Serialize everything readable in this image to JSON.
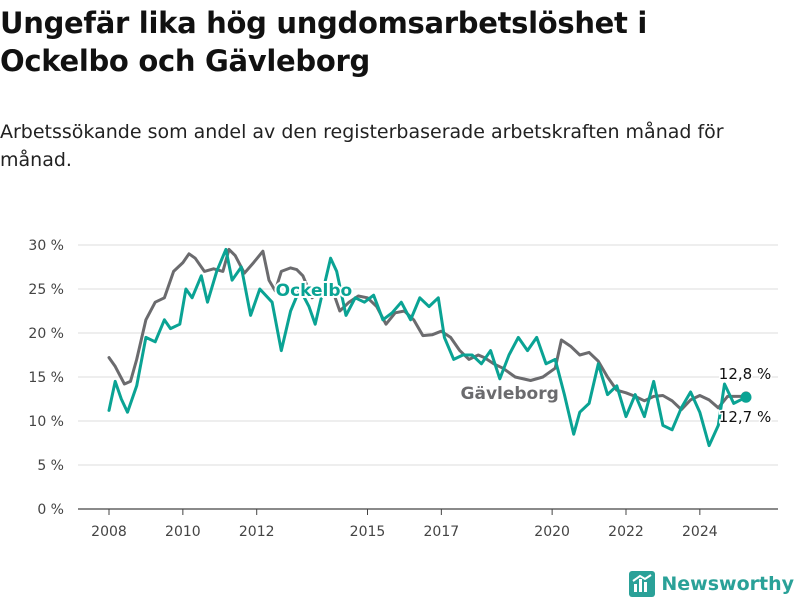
{
  "title": "Ungefär lika hög ungdomsarbetslöshet i Ockelbo och Gävleborg",
  "subtitle": "Arbetssökande som andel av den registerbaserade arbetskraften månad för månad.",
  "brand": {
    "name": "Newsworthy",
    "color": "#2aa198"
  },
  "chart_data": {
    "type": "line",
    "title": "",
    "xlabel": "",
    "ylabel": "",
    "ylim": [
      0,
      30
    ],
    "yticks": [
      "0 %",
      "5 %",
      "10 %",
      "15 %",
      "20 %",
      "25 %",
      "30 %"
    ],
    "xticks": [
      "2008",
      "2010",
      "2012",
      "2015",
      "2017",
      "2020",
      "2022",
      "2024"
    ],
    "grid": "horizontal",
    "series": [
      {
        "name": "Gävleborg",
        "color": "#6b6b6e",
        "end_label": "12,8 %",
        "points": [
          [
            "2008-01",
            17.2
          ],
          [
            "2008-03",
            16.2
          ],
          [
            "2008-06",
            14.2
          ],
          [
            "2008-08",
            14.5
          ],
          [
            "2008-10",
            17.0
          ],
          [
            "2009-01",
            21.5
          ],
          [
            "2009-04",
            23.5
          ],
          [
            "2009-07",
            24.0
          ],
          [
            "2009-10",
            27.0
          ],
          [
            "2010-01",
            28.0
          ],
          [
            "2010-03",
            29.0
          ],
          [
            "2010-05",
            28.5
          ],
          [
            "2010-08",
            27.0
          ],
          [
            "2010-11",
            27.3
          ],
          [
            "2011-02",
            27.0
          ],
          [
            "2011-04",
            29.5
          ],
          [
            "2011-06",
            28.8
          ],
          [
            "2011-09",
            26.8
          ],
          [
            "2011-12",
            28.0
          ],
          [
            "2012-03",
            29.3
          ],
          [
            "2012-05",
            26.0
          ],
          [
            "2012-07",
            24.8
          ],
          [
            "2012-09",
            27.0
          ],
          [
            "2012-12",
            27.4
          ],
          [
            "2013-02",
            27.2
          ],
          [
            "2013-04",
            26.5
          ],
          [
            "2013-07",
            24.0
          ],
          [
            "2013-10",
            25.0
          ],
          [
            "2014-01",
            25.5
          ],
          [
            "2014-04",
            22.5
          ],
          [
            "2014-07",
            23.5
          ],
          [
            "2014-10",
            24.2
          ],
          [
            "2015-01",
            24.0
          ],
          [
            "2015-04",
            23.0
          ],
          [
            "2015-07",
            21.0
          ],
          [
            "2015-10",
            22.3
          ],
          [
            "2016-01",
            22.5
          ],
          [
            "2016-04",
            21.5
          ],
          [
            "2016-07",
            19.7
          ],
          [
            "2016-10",
            19.8
          ],
          [
            "2017-01",
            20.2
          ],
          [
            "2017-04",
            19.5
          ],
          [
            "2017-07",
            18.0
          ],
          [
            "2017-10",
            17.0
          ],
          [
            "2018-01",
            17.5
          ],
          [
            "2018-03",
            17.2
          ],
          [
            "2018-06",
            16.5
          ],
          [
            "2018-09",
            16.0
          ],
          [
            "2019-01",
            15.0
          ],
          [
            "2019-06",
            14.6
          ],
          [
            "2019-10",
            15.0
          ],
          [
            "2020-02",
            16.0
          ],
          [
            "2020-04",
            19.2
          ],
          [
            "2020-07",
            18.5
          ],
          [
            "2020-10",
            17.5
          ],
          [
            "2021-01",
            17.8
          ],
          [
            "2021-04",
            16.8
          ],
          [
            "2021-07",
            15.0
          ],
          [
            "2021-10",
            13.5
          ],
          [
            "2022-01",
            13.2
          ],
          [
            "2022-04",
            12.8
          ],
          [
            "2022-07",
            12.3
          ],
          [
            "2022-10",
            12.8
          ],
          [
            "2023-01",
            12.9
          ],
          [
            "2023-04",
            12.3
          ],
          [
            "2023-07",
            11.3
          ],
          [
            "2023-10",
            12.4
          ],
          [
            "2024-01",
            12.9
          ],
          [
            "2024-04",
            12.4
          ],
          [
            "2024-07",
            11.5
          ],
          [
            "2024-10",
            12.8
          ],
          [
            "2025-01",
            12.8
          ],
          [
            "2025-04",
            12.8
          ]
        ]
      },
      {
        "name": "Ockelbo",
        "color": "#0aa394",
        "end_label": "12,7 %",
        "points": [
          [
            "2008-01",
            11.2
          ],
          [
            "2008-03",
            14.5
          ],
          [
            "2008-05",
            12.5
          ],
          [
            "2008-07",
            11.0
          ],
          [
            "2008-10",
            14.0
          ],
          [
            "2009-01",
            19.5
          ],
          [
            "2009-04",
            19.0
          ],
          [
            "2009-07",
            21.5
          ],
          [
            "2009-09",
            20.5
          ],
          [
            "2009-12",
            21.0
          ],
          [
            "2010-02",
            25.0
          ],
          [
            "2010-04",
            24.0
          ],
          [
            "2010-07",
            26.5
          ],
          [
            "2010-09",
            23.5
          ],
          [
            "2010-12",
            27.0
          ],
          [
            "2011-03",
            29.5
          ],
          [
            "2011-05",
            26.0
          ],
          [
            "2011-08",
            27.5
          ],
          [
            "2011-11",
            22.0
          ],
          [
            "2012-02",
            25.0
          ],
          [
            "2012-06",
            23.5
          ],
          [
            "2012-09",
            18.0
          ],
          [
            "2012-12",
            22.5
          ],
          [
            "2013-03",
            25.0
          ],
          [
            "2013-06",
            23.0
          ],
          [
            "2013-08",
            21.0
          ],
          [
            "2013-10",
            24.0
          ],
          [
            "2014-01",
            28.5
          ],
          [
            "2014-03",
            27.0
          ],
          [
            "2014-06",
            22.0
          ],
          [
            "2014-09",
            24.0
          ],
          [
            "2014-12",
            23.5
          ],
          [
            "2015-03",
            24.3
          ],
          [
            "2015-06",
            21.5
          ],
          [
            "2015-09",
            22.3
          ],
          [
            "2015-12",
            23.5
          ],
          [
            "2016-03",
            21.5
          ],
          [
            "2016-06",
            24.0
          ],
          [
            "2016-09",
            23.0
          ],
          [
            "2016-12",
            24.0
          ],
          [
            "2017-02",
            19.5
          ],
          [
            "2017-05",
            17.0
          ],
          [
            "2017-08",
            17.5
          ],
          [
            "2017-11",
            17.5
          ],
          [
            "2018-02",
            16.5
          ],
          [
            "2018-05",
            18.0
          ],
          [
            "2018-08",
            14.8
          ],
          [
            "2018-11",
            17.5
          ],
          [
            "2019-02",
            19.5
          ],
          [
            "2019-05",
            18.0
          ],
          [
            "2019-08",
            19.5
          ],
          [
            "2019-11",
            16.5
          ],
          [
            "2020-02",
            17.0
          ],
          [
            "2020-05",
            13.0
          ],
          [
            "2020-08",
            8.5
          ],
          [
            "2020-10",
            11.0
          ],
          [
            "2021-01",
            12.0
          ],
          [
            "2021-04",
            16.5
          ],
          [
            "2021-07",
            13.0
          ],
          [
            "2021-10",
            14.0
          ],
          [
            "2022-01",
            10.5
          ],
          [
            "2022-04",
            13.0
          ],
          [
            "2022-07",
            10.5
          ],
          [
            "2022-10",
            14.5
          ],
          [
            "2023-01",
            9.5
          ],
          [
            "2023-04",
            9.0
          ],
          [
            "2023-07",
            11.5
          ],
          [
            "2023-10",
            13.3
          ],
          [
            "2024-01",
            11.0
          ],
          [
            "2024-04",
            7.2
          ],
          [
            "2024-07",
            9.5
          ],
          [
            "2024-09",
            14.2
          ],
          [
            "2024-12",
            12.0
          ],
          [
            "2025-04",
            12.7
          ]
        ]
      }
    ]
  }
}
